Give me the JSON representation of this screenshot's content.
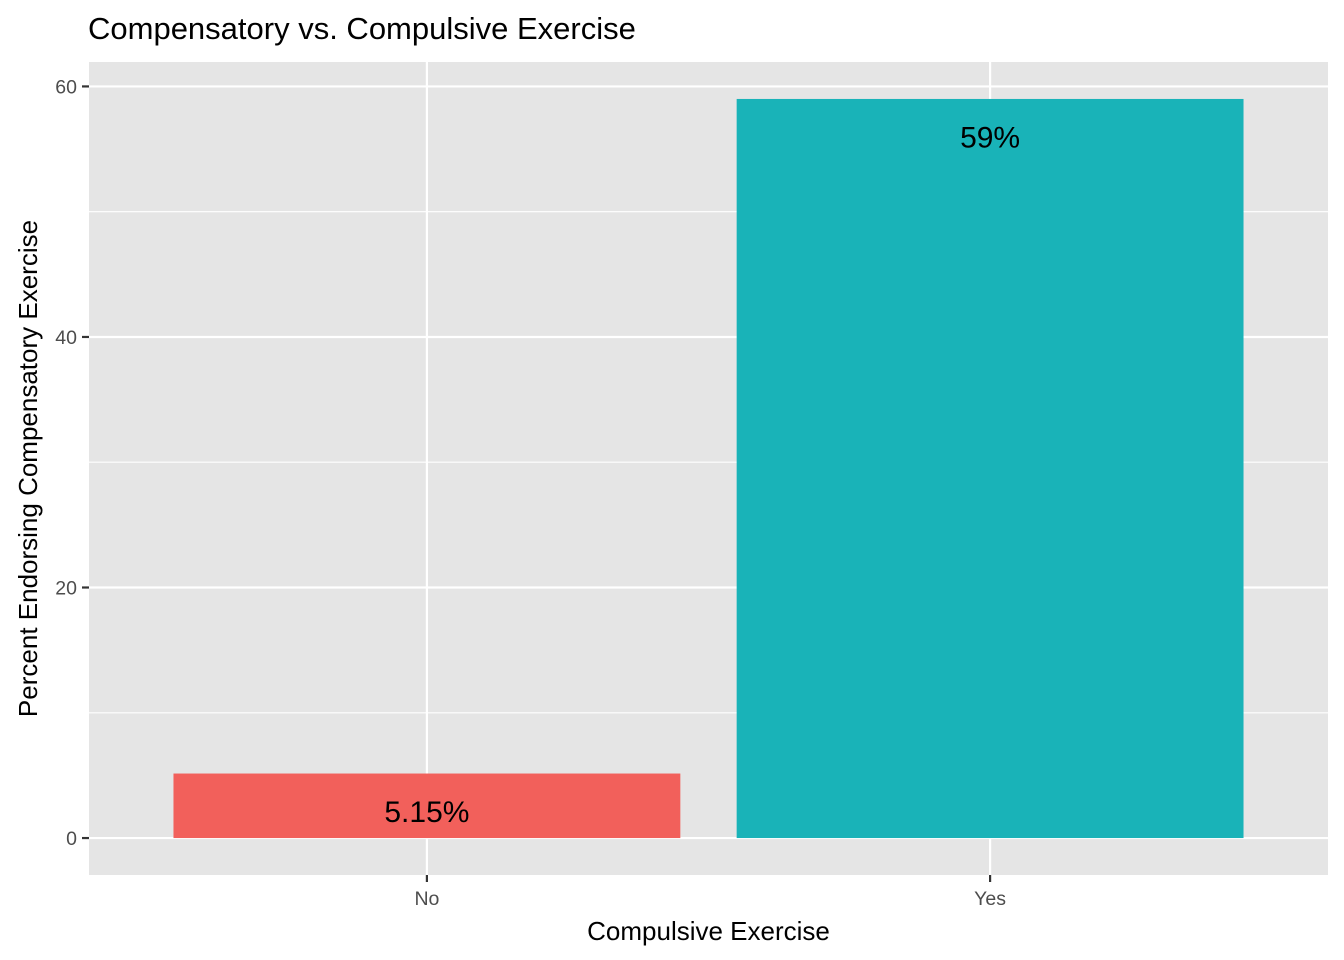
{
  "chart_data": {
    "type": "bar",
    "title": "Compensatory vs. Compulsive Exercise",
    "xlabel": "Compulsive Exercise",
    "ylabel": "Percent Endorsing Compensatory Exercise",
    "categories": [
      "No",
      "Yes"
    ],
    "values": [
      5.15,
      59
    ],
    "data_labels": [
      "5.15%",
      "59%"
    ],
    "bar_colors": [
      "#F2605B",
      "#19B3B8"
    ],
    "ylim": [
      -2.95,
      61.95
    ],
    "y_ticks": [
      0,
      20,
      40,
      60
    ],
    "y_minor_ticks": [
      10,
      30,
      50
    ],
    "grid": true,
    "panel_background": "#E5E5E5",
    "legend": "none"
  }
}
